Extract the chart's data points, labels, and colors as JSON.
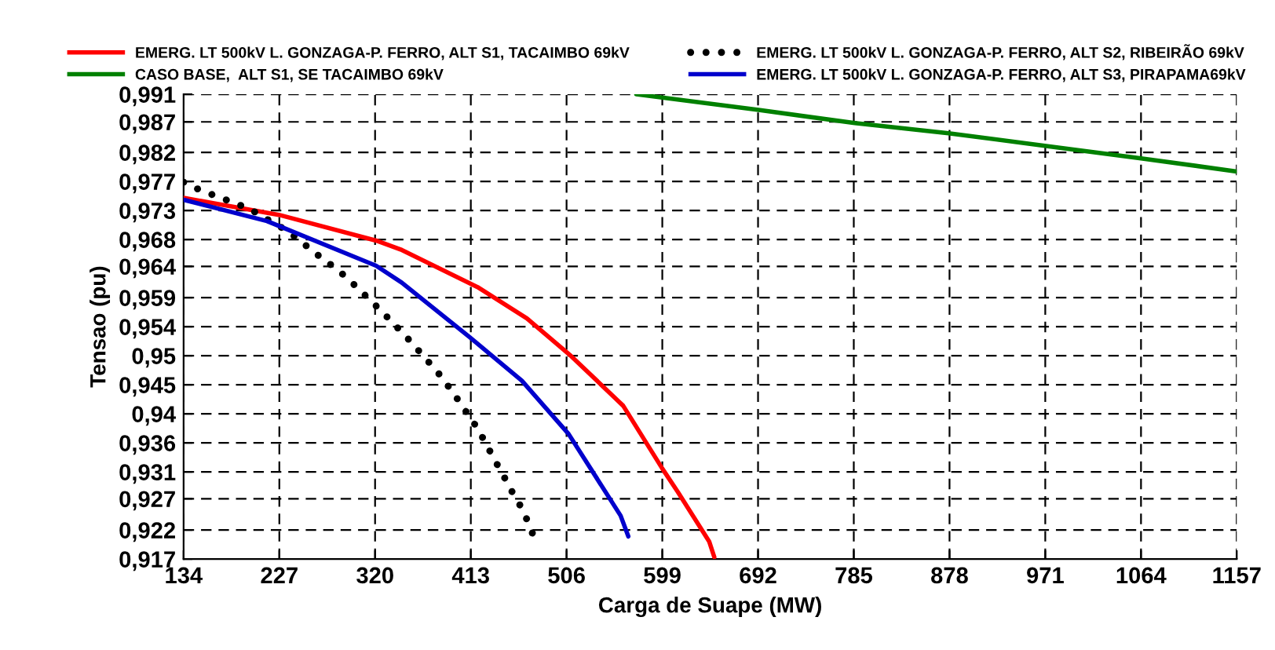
{
  "chart_data": {
    "type": "line",
    "xlabel": "Carga de Suape (MW)",
    "ylabel": "Tensao (pu)",
    "xlim": [
      134,
      1157
    ],
    "xticks": [
      134,
      227,
      320,
      413,
      506,
      599,
      692,
      785,
      878,
      971,
      1064,
      1157
    ],
    "ylim": [
      0.917,
      0.991
    ],
    "yticks": [
      {
        "value": 0.917,
        "label": "0,917"
      },
      {
        "value": 0.921625,
        "label": "0,922"
      },
      {
        "value": 0.9266,
        "label": "0,927"
      },
      {
        "value": 0.930875,
        "label": "0,931"
      },
      {
        "value": 0.9355,
        "label": "0,936"
      },
      {
        "value": 0.940125,
        "label": "0,94"
      },
      {
        "value": 0.94475,
        "label": "0,945"
      },
      {
        "value": 0.949375,
        "label": "0,95"
      },
      {
        "value": 0.954,
        "label": "0,954"
      },
      {
        "value": 0.958625,
        "label": "0,959"
      },
      {
        "value": 0.9636,
        "label": "0,964"
      },
      {
        "value": 0.967875,
        "label": "0,968"
      },
      {
        "value": 0.9725,
        "label": "0,973"
      },
      {
        "value": 0.977125,
        "label": "0,977"
      },
      {
        "value": 0.98175,
        "label": "0,982"
      },
      {
        "value": 0.9866,
        "label": "0,987"
      },
      {
        "value": 0.991,
        "label": "0,991"
      }
    ],
    "grid": true,
    "legend": "top",
    "marker": "none",
    "series": [
      {
        "name": "EMERG. LT 500kV L. GONZAGA-P. FERRO, ALT S1, TACAIMBO 69kV",
        "color": "#ff0000",
        "line_style": "solid",
        "x": [
          134,
          226.5,
          321,
          346,
          419.5,
          467.5,
          510.5,
          561,
          599,
          614,
          644.5,
          649.5
        ],
        "values": [
          0.9745,
          0.9718,
          0.9677,
          0.9662,
          0.9603,
          0.9553,
          0.9493,
          0.9414,
          0.9314,
          0.9277,
          0.9198,
          0.9173
        ]
      },
      {
        "name": "CASO BASE,  ALT S1, SE TACAIMBO 69kV",
        "color": "#008000",
        "line_style": "solid",
        "x": [
          573.7,
          692.5,
          786,
          877,
          970.5,
          1064,
          1157
        ],
        "values": [
          0.991,
          0.9885,
          0.9864,
          0.9848,
          0.9828,
          0.9808,
          0.9787
        ]
      },
      {
        "name": "EMERG. LT 500kV L. GONZAGA-P. FERRO, ALT S2, RIBEIRÃO 69kV",
        "color": "#000000",
        "line_style": "dotted",
        "x": [
          134,
          149.2,
          165.4,
          181.5,
          197.7,
          212.9,
          228,
          242.2,
          255.3,
          269,
          282.6,
          295.7,
          308.4,
          321,
          333.1,
          344.8,
          356.4,
          368,
          379.6,
          389.8,
          399.9,
          409.5,
          419.1,
          427.6,
          435.7,
          444.3,
          452.4,
          461,
          468.6,
          474.7
        ],
        "values": [
          0.977,
          0.9758,
          0.9748,
          0.9738,
          0.9728,
          0.9713,
          0.9699,
          0.9683,
          0.9666,
          0.9648,
          0.9632,
          0.9613,
          0.9593,
          0.9573,
          0.9553,
          0.9533,
          0.9513,
          0.9491,
          0.947,
          0.9448,
          0.9425,
          0.9402,
          0.9379,
          0.9354,
          0.9329,
          0.9304,
          0.9279,
          0.9255,
          0.9229,
          0.9203
        ]
      },
      {
        "name": "EMERG. LT 500kV L. GONZAGA-P. FERRO, ALT S3, PIRAPAMA69kV",
        "color": "#0000cc",
        "line_style": "solid",
        "x": [
          134,
          215,
          321,
          346,
          412,
          462.5,
          508,
          558.5,
          566
        ],
        "values": [
          0.9742,
          0.9708,
          0.9637,
          0.961,
          0.9523,
          0.9454,
          0.9369,
          0.9239,
          0.9206
        ]
      }
    ]
  }
}
